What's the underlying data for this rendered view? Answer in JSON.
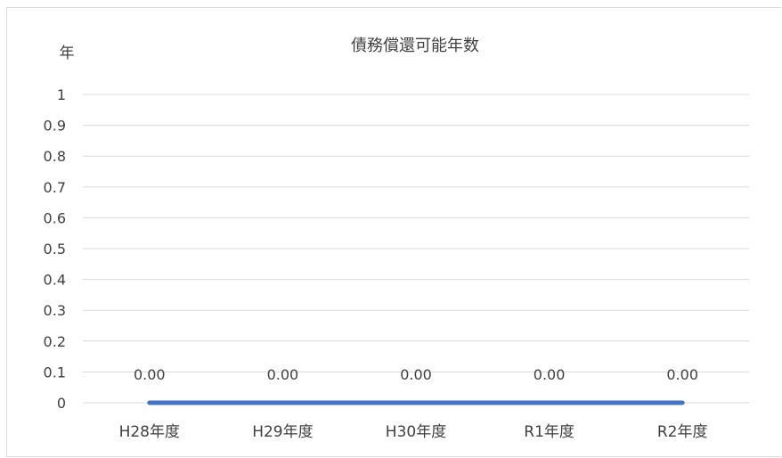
{
  "chart_data": {
    "type": "line",
    "title": "債務償還可能年数",
    "ylabel": "年",
    "xlabel": "",
    "categories": [
      "H28年度",
      "H29年度",
      "H30年度",
      "R1年度",
      "R2年度"
    ],
    "series": [
      {
        "values": [
          0,
          0,
          0,
          0,
          0
        ],
        "data_labels": [
          "0.00",
          "0.00",
          "0.00",
          "0.00",
          "0.00"
        ],
        "color": "#4472c4"
      }
    ],
    "ylim": [
      0,
      1
    ],
    "yticks": [
      "0",
      "0.1",
      "0.2",
      "0.3",
      "0.4",
      "0.5",
      "0.6",
      "0.7",
      "0.8",
      "0.9",
      "1"
    ],
    "grid": true,
    "legend": "none"
  }
}
